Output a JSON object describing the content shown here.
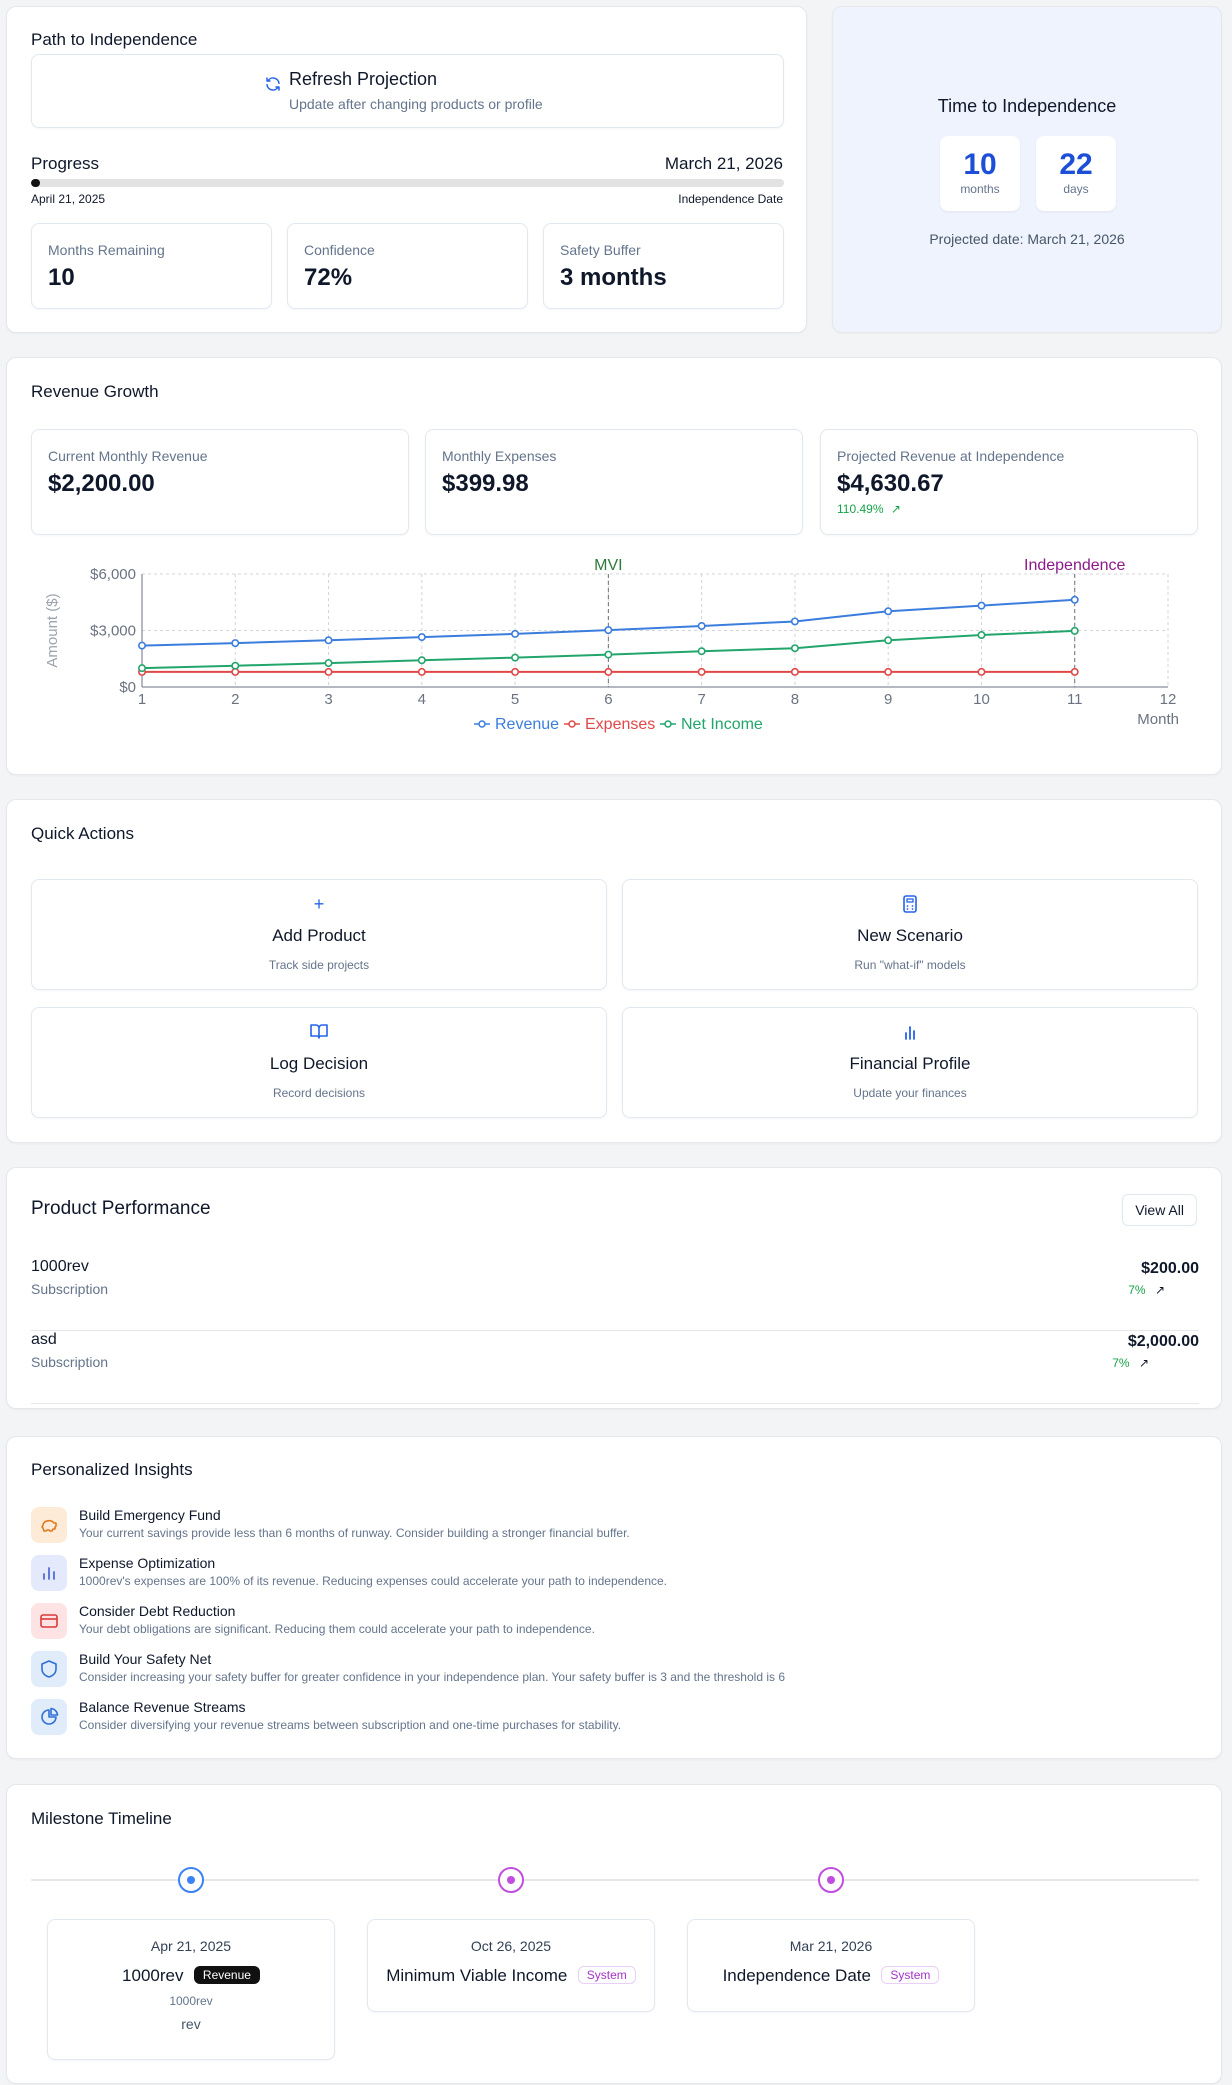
{
  "path": {
    "title": "Path to Independence",
    "refresh_label": "Refresh Projection",
    "refresh_sub": "Update after changing products or profile",
    "progress_label": "Progress",
    "end_date": "March 21, 2026",
    "start_date": "April 21, 2025",
    "end_caption": "Independence Date",
    "progress_fraction": 0.012,
    "stats": [
      {
        "label": "Months Remaining",
        "value": "10"
      },
      {
        "label": "Confidence",
        "value": "72%"
      },
      {
        "label": "Safety Buffer",
        "value": "3 months"
      }
    ]
  },
  "time_card": {
    "title": "Time to Independence",
    "months_value": "10",
    "months_label": "months",
    "days_value": "22",
    "days_label": "days",
    "projected": "Projected date: March 21, 2026"
  },
  "revenue": {
    "title": "Revenue Growth",
    "stats": [
      {
        "label": "Current Monthly Revenue",
        "value": "$2,200.00"
      },
      {
        "label": "Monthly Expenses",
        "value": "$399.98"
      },
      {
        "label": "Projected Revenue at Independence",
        "value": "$4,630.67",
        "delta": "110.49%"
      }
    ]
  },
  "chart_data": {
    "type": "line",
    "title": "",
    "xlabel": "Month",
    "ylabel": "Amount ($)",
    "x": [
      1,
      2,
      3,
      4,
      5,
      6,
      7,
      8,
      9,
      10,
      11
    ],
    "xlim": [
      1,
      12
    ],
    "xticks": [
      "1",
      "2",
      "3",
      "4",
      "5",
      "6",
      "7",
      "8",
      "9",
      "10",
      "11",
      "12"
    ],
    "ylim": [
      0,
      6000
    ],
    "yticks": [
      {
        "v": 0,
        "label": "$0"
      },
      {
        "v": 3000,
        "label": "$3,000"
      },
      {
        "v": 6000,
        "label": "$6,000"
      }
    ],
    "series": [
      {
        "name": "Revenue",
        "color": "#3b7ddd",
        "values": [
          2200,
          2330,
          2480,
          2650,
          2820,
          3020,
          3240,
          3480,
          4020,
          4320,
          4630
        ]
      },
      {
        "name": "Expenses",
        "color": "#e04848",
        "values": [
          800,
          800,
          800,
          800,
          800,
          800,
          800,
          800,
          800,
          800,
          800
        ]
      },
      {
        "name": "Net Income",
        "color": "#22a56b",
        "values": [
          1000,
          1130,
          1270,
          1420,
          1560,
          1720,
          1900,
          2060,
          2480,
          2760,
          2980
        ]
      }
    ],
    "reference_lines": [
      {
        "x": 6,
        "label": "MVI",
        "color": "#2f7a3a"
      },
      {
        "x": 11,
        "label": "Independence",
        "color": "#8a1a8a"
      }
    ]
  },
  "quick": {
    "title": "Quick Actions",
    "items": [
      {
        "icon": "plus",
        "label": "Add Product",
        "sub": "Track side projects"
      },
      {
        "icon": "calculator",
        "label": "New Scenario",
        "sub": "Run \"what-if\" models"
      },
      {
        "icon": "book",
        "label": "Log Decision",
        "sub": "Record decisions"
      },
      {
        "icon": "bar-chart",
        "label": "Financial Profile",
        "sub": "Update your finances"
      }
    ]
  },
  "products": {
    "title": "Product Performance",
    "view_all": "View All",
    "items": [
      {
        "name": "1000rev",
        "type": "Subscription",
        "value": "$200.00",
        "pct": "7%"
      },
      {
        "name": "asd",
        "type": "Subscription",
        "value": "$2,000.00",
        "pct": "7%"
      }
    ]
  },
  "insights": {
    "title": "Personalized Insights",
    "items": [
      {
        "icon": "piggy-bank",
        "title": "Build Emergency Fund",
        "text": "Your current savings provide less than 6 months of runway. Consider building a stronger financial buffer.",
        "bg": "#fdebd8",
        "fg": "#e07a1f"
      },
      {
        "icon": "bar-chart",
        "title": "Expense Optimization",
        "text": "1000rev's expenses are 100% of its revenue. Reducing expenses could accelerate your path to independence.",
        "bg": "#e4e9fb",
        "fg": "#4f6fd8"
      },
      {
        "icon": "credit-card",
        "title": "Consider Debt Reduction",
        "text": "Your debt obligations are significant. Reducing them could accelerate your path to independence.",
        "bg": "#fde3e3",
        "fg": "#dc3b3b"
      },
      {
        "icon": "shield",
        "title": "Build Your Safety Net",
        "text": "Consider increasing your safety buffer for greater confidence in your independence plan. Your safety buffer is 3 and the threshold is 6",
        "bg": "#e1ecfb",
        "fg": "#2f6fd6"
      },
      {
        "icon": "pie-chart",
        "title": "Balance Revenue Streams",
        "text": "Consider diversifying your revenue streams between subscription and one-time purchases for stability.",
        "bg": "#e1ecfb",
        "fg": "#2f6fd6"
      }
    ]
  },
  "milestones": {
    "title": "Milestone Timeline",
    "items": [
      {
        "date": "Apr 21, 2025",
        "title": "1000rev",
        "badge": "Revenue",
        "sub": "1000rev",
        "sub2": "rev",
        "color": "#3b82f6"
      },
      {
        "date": "Oct 26, 2025",
        "title": "Minimum Viable Income",
        "badge": "System",
        "color": "#c04ee0"
      },
      {
        "date": "Mar 21, 2026",
        "title": "Independence Date",
        "badge": "System",
        "color": "#c04ee0"
      }
    ]
  }
}
